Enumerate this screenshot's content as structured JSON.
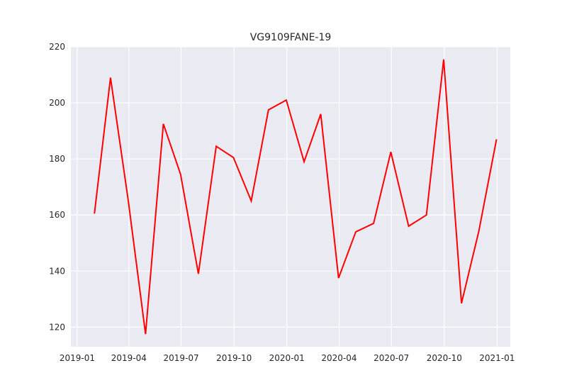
{
  "chart_data": {
    "type": "line",
    "title": "VG9109FANE-19",
    "xlabel": "",
    "ylabel": "",
    "x_axis": "date",
    "xlim": [
      "2018-12-21",
      "2021-01-24"
    ],
    "ylim": [
      113,
      220
    ],
    "x_ticks": [
      "2019-01",
      "2019-04",
      "2019-07",
      "2019-10",
      "2020-01",
      "2020-04",
      "2020-07",
      "2020-10",
      "2021-01"
    ],
    "x_tick_dates": [
      "2019-01-01",
      "2019-04-01",
      "2019-07-01",
      "2019-10-01",
      "2020-01-01",
      "2020-04-01",
      "2020-07-01",
      "2020-10-01",
      "2021-01-01"
    ],
    "y_ticks": [
      120,
      140,
      160,
      180,
      200,
      220
    ],
    "grid": true,
    "legend": "none",
    "colors": {
      "line": "#ff0000",
      "background": "#eaeaf2",
      "grid": "#ffffff"
    },
    "series": [
      {
        "x": [
          "2019-01-31",
          "2019-02-28",
          "2019-03-31",
          "2019-04-30",
          "2019-05-31",
          "2019-06-30",
          "2019-07-31",
          "2019-08-31",
          "2019-09-30",
          "2019-10-31",
          "2019-11-30",
          "2019-12-31",
          "2020-01-31",
          "2020-02-29",
          "2020-03-31",
          "2020-04-30",
          "2020-05-31",
          "2020-06-30",
          "2020-07-31",
          "2020-08-31",
          "2020-09-30",
          "2020-10-31",
          "2020-11-30",
          "2020-12-31"
        ],
        "values": [
          160.5,
          209,
          165,
          117.5,
          192.5,
          174.5,
          139,
          184.5,
          180.5,
          165,
          197.5,
          201,
          179,
          196,
          137.5,
          154,
          157,
          182.5,
          156,
          160,
          215.5,
          128.5,
          154,
          187
        ]
      }
    ]
  }
}
